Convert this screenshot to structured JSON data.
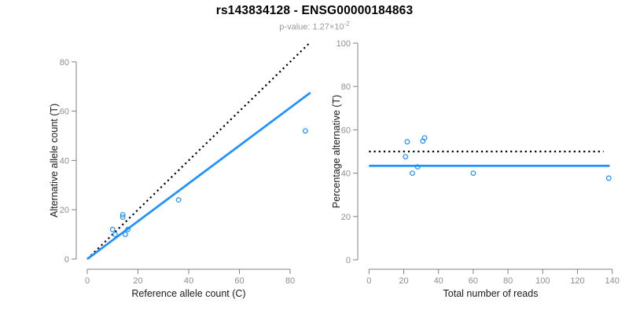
{
  "header": {
    "title": "rs143834128 - ENSG00000184863",
    "subtitle_prefix": "p-value: 1.27×10",
    "subtitle_exponent": "-2"
  },
  "colors": {
    "point_blue": "#1E90FF",
    "line_blue": "#1E90FF",
    "dotted_black": "#000000",
    "axis_line_gray": "#808080",
    "tick_label_gray": "#8e8e8e",
    "axis_title_dark": "#1a1a1a",
    "background": "#ffffff"
  },
  "chart_data": [
    {
      "type": "scatter",
      "name": "allele-counts",
      "xlabel": "Reference allele count (C)",
      "ylabel": "Alternative allele count (T)",
      "xlim": [
        0,
        88
      ],
      "ylim": [
        0,
        88
      ],
      "xticks": [
        0,
        20,
        40,
        60,
        80
      ],
      "yticks": [
        0,
        20,
        40,
        60,
        80
      ],
      "grid": false,
      "points": [
        {
          "x": 10,
          "y": 12
        },
        {
          "x": 11,
          "y": 10
        },
        {
          "x": 14,
          "y": 17
        },
        {
          "x": 14,
          "y": 18
        },
        {
          "x": 15,
          "y": 10
        },
        {
          "x": 16,
          "y": 12
        },
        {
          "x": 36,
          "y": 24
        },
        {
          "x": 86,
          "y": 52
        }
      ],
      "lines": [
        {
          "name": "identity-line",
          "style": "dotted",
          "color_key": "dotted_black",
          "x1": 0,
          "y1": 0,
          "x2": 88,
          "y2": 88
        },
        {
          "name": "regression-line",
          "style": "solid",
          "color_key": "line_blue",
          "x1": 0,
          "y1": 0,
          "x2": 88,
          "y2": 67.5
        }
      ]
    },
    {
      "type": "scatter",
      "name": "percentage-vs-coverage",
      "xlabel": "Total number of reads",
      "ylabel": "Percentage alternative (T)",
      "xlim": [
        0,
        144
      ],
      "ylim": [
        0,
        100
      ],
      "xticks": [
        0,
        20,
        40,
        60,
        80,
        100,
        120,
        140
      ],
      "yticks": [
        0,
        20,
        40,
        60,
        80,
        100
      ],
      "grid": false,
      "points": [
        {
          "x": 21,
          "y": 47.6
        },
        {
          "x": 22,
          "y": 54.5
        },
        {
          "x": 25,
          "y": 40
        },
        {
          "x": 28,
          "y": 42.9
        },
        {
          "x": 31,
          "y": 54.8
        },
        {
          "x": 32,
          "y": 56.3
        },
        {
          "x": 60,
          "y": 40
        },
        {
          "x": 138,
          "y": 37.7
        }
      ],
      "lines": [
        {
          "name": "expected-50pct-line",
          "style": "dotted",
          "color_key": "dotted_black",
          "x1": 0,
          "y1": 50,
          "x2": 135,
          "y2": 50
        },
        {
          "name": "observed-mean-line",
          "style": "solid",
          "color_key": "line_blue",
          "x1": 0,
          "y1": 43.4,
          "x2": 138.5,
          "y2": 43.4
        }
      ]
    }
  ]
}
